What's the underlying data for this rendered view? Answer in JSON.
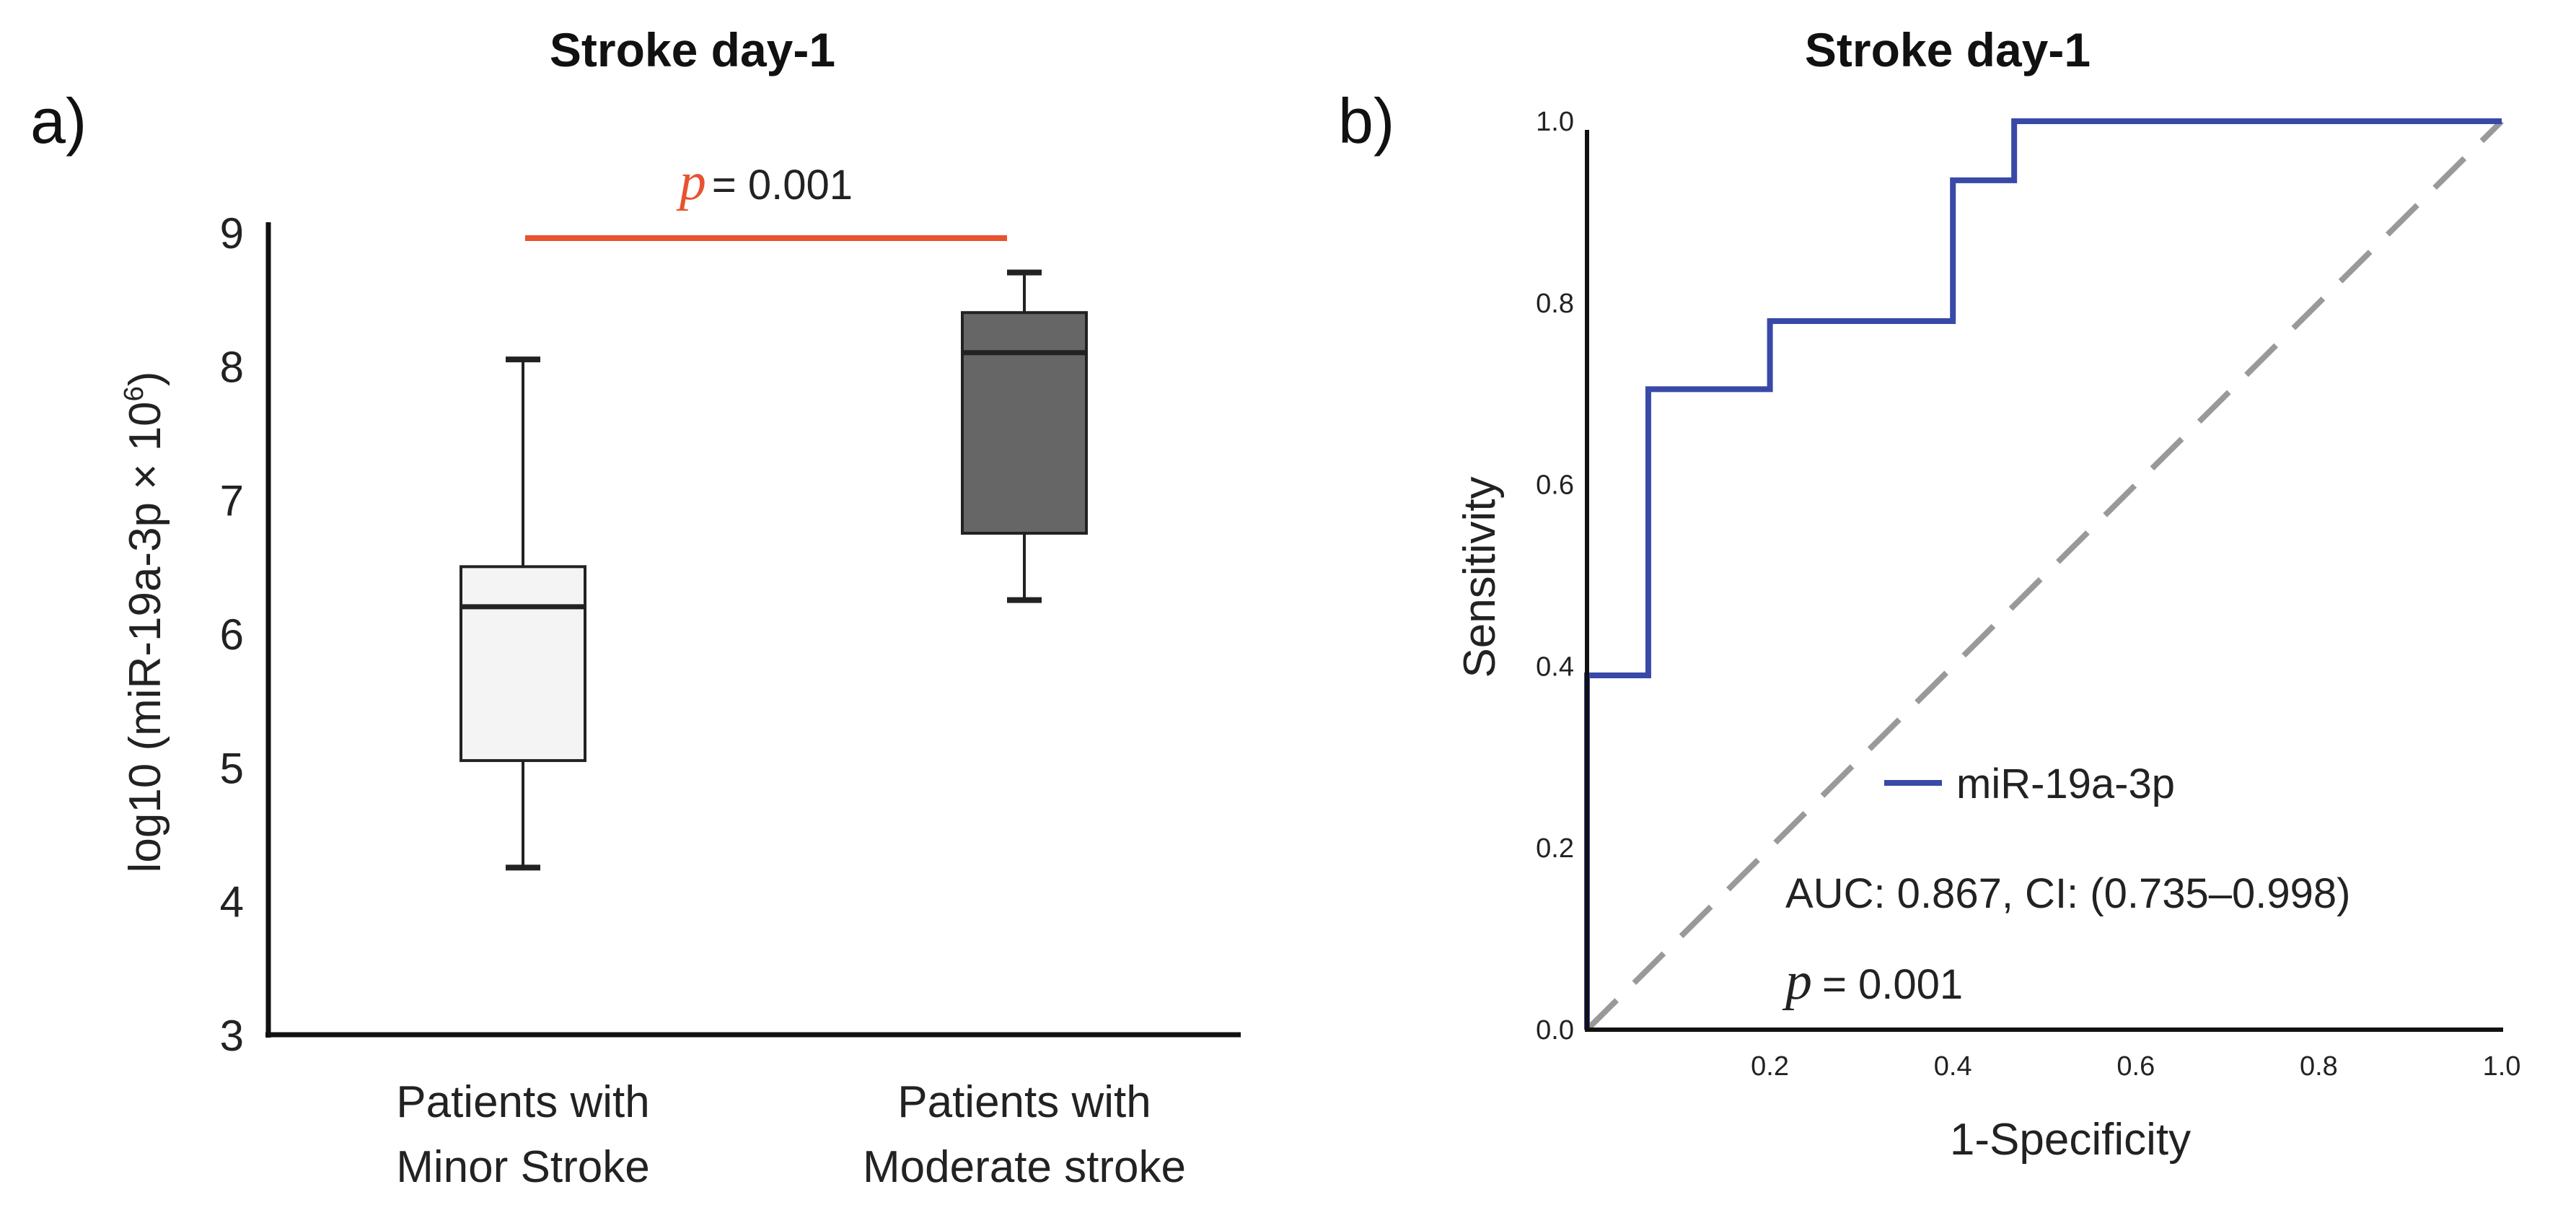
{
  "chart_data": [
    {
      "panel_label": "a)",
      "type": "box",
      "title": "Stroke day-1",
      "ylabel_main": "log10 (miR-19a-3p × 10",
      "ylabel_exp": "6",
      "ylabel_close": ")",
      "ylim": [
        3,
        9
      ],
      "yticks": [
        "3",
        "4",
        "5",
        "6",
        "7",
        "8",
        "9"
      ],
      "categories": [
        {
          "line1": "Patients with",
          "line2": "Minor Stroke"
        },
        {
          "line1": "Patients with",
          "line2": "Moderate stroke"
        }
      ],
      "boxes": [
        {
          "name": "Minor Stroke",
          "min": 4.25,
          "q1": 5.05,
          "median": 6.2,
          "q3": 6.5,
          "max": 8.05,
          "fill": "#f4f4f4"
        },
        {
          "name": "Moderate stroke",
          "min": 6.25,
          "q1": 6.75,
          "median": 8.1,
          "q3": 8.4,
          "max": 8.7,
          "fill": "#666666"
        }
      ],
      "significance": {
        "p_symbol": "p",
        "p_text": "= 0.001",
        "color": "#e8532f"
      }
    },
    {
      "panel_label": "b)",
      "type": "line",
      "title": "Stroke day-1",
      "xlabel": "1-Specificity",
      "ylabel": "Sensitivity",
      "xlim": [
        0,
        1
      ],
      "ylim": [
        0,
        1
      ],
      "xticks": [
        "0.2",
        "0.4",
        "0.6",
        "0.8",
        "1.0"
      ],
      "yticks": [
        "0.0",
        "0.2",
        "0.4",
        "0.6",
        "0.8",
        "1.0"
      ],
      "series": [
        {
          "name": "miR-19a-3p",
          "color": "#3949a8",
          "x": [
            0,
            0,
            0.067,
            0.067,
            0.2,
            0.2,
            0.4,
            0.4,
            0.467,
            0.467,
            1.0
          ],
          "y": [
            0,
            0.39,
            0.39,
            0.705,
            0.705,
            0.78,
            0.78,
            0.935,
            0.935,
            1.0,
            1.0
          ]
        }
      ],
      "reference_line": {
        "x": [
          0,
          1
        ],
        "y": [
          0,
          1
        ],
        "color": "#999999",
        "style": "dashed"
      },
      "legend": {
        "label": "miR-19a-3p",
        "position": "lower-right"
      },
      "annotation": {
        "auc_text": "AUC: 0.867, CI: (0.735–0.998)",
        "p_symbol": "p",
        "p_text": "= 0.001"
      }
    }
  ]
}
